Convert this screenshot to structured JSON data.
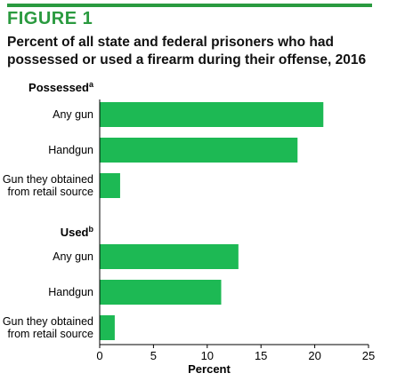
{
  "figure_label": "FIGURE 1",
  "colors": {
    "accent": "#2a9a3f",
    "bar": "#1db954",
    "axis": "#000000"
  },
  "chart_data": {
    "type": "bar",
    "orientation": "horizontal",
    "title": "Percent of all state and federal prisoners who had possessed or used a firearm during their offense, 2016",
    "xlabel": "Percent",
    "xlim": [
      0,
      25
    ],
    "xticks": [
      "0",
      "5",
      "10",
      "15",
      "20",
      "25"
    ],
    "grid": false,
    "groups": [
      {
        "name": "Possessed",
        "superscript": "a",
        "bars": [
          {
            "label_lines": [
              "Any gun"
            ],
            "value": 20.8
          },
          {
            "label_lines": [
              "Handgun"
            ],
            "value": 18.4
          },
          {
            "label_lines": [
              "Gun they obtained",
              "from retail source"
            ],
            "value": 1.9
          }
        ]
      },
      {
        "name": "Used",
        "superscript": "b",
        "bars": [
          {
            "label_lines": [
              "Any gun"
            ],
            "value": 12.9
          },
          {
            "label_lines": [
              "Handgun"
            ],
            "value": 11.3
          },
          {
            "label_lines": [
              "Gun they obtained",
              "from retail source"
            ],
            "value": 1.4
          }
        ]
      }
    ]
  }
}
